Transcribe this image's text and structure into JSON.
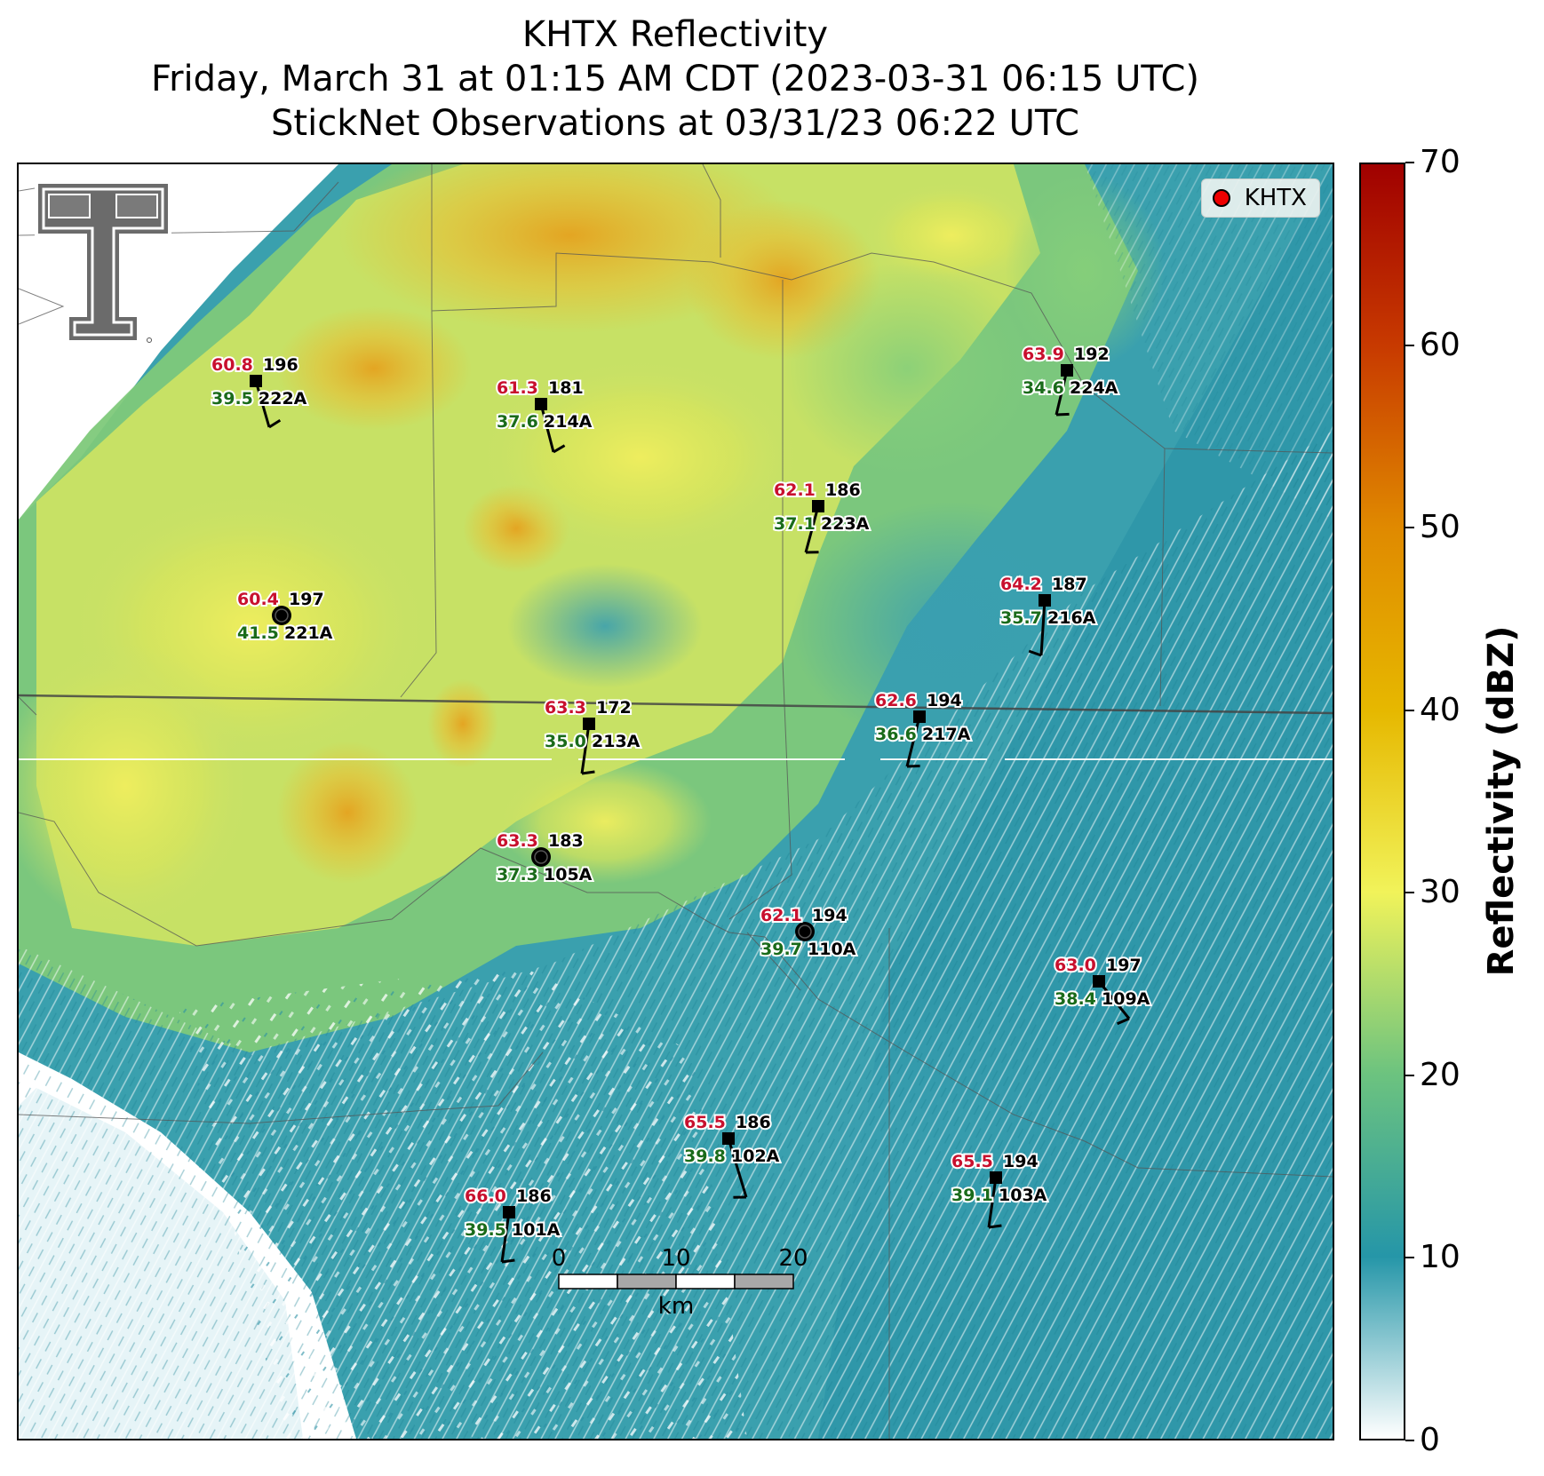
{
  "title": {
    "line1": "KHTX Reflectivity",
    "line2": "Friday, March 31 at 01:15 AM CDT (2023-03-31 06:15 UTC)",
    "line3": "StickNet Observations at 03/31/23 06:22 UTC"
  },
  "legend": {
    "label": "KHTX",
    "marker_color": "#e00000"
  },
  "colorbar": {
    "title": "Reflectivity (dBZ)",
    "min": 0,
    "max": 70,
    "ticks": [
      "0",
      "10",
      "20",
      "30",
      "40",
      "50",
      "60",
      "70"
    ],
    "colors": [
      "#ffffff",
      "#2596a8",
      "#6cc37f",
      "#f1f35a",
      "#e6b800",
      "#e08a00",
      "#c83a00",
      "#a00000"
    ]
  },
  "scale_bar": {
    "ticks": [
      "0",
      "10",
      "20"
    ],
    "unit": "km"
  },
  "logo": "texas-tech-double-t",
  "stations": [
    {
      "id": "222A",
      "temp": "60.8",
      "dew": "39.5",
      "dir": "196"
    },
    {
      "id": "214A",
      "temp": "61.3",
      "dew": "37.6",
      "dir": "181"
    },
    {
      "id": "224A",
      "temp": "63.9",
      "dew": "34.6",
      "dir": "192"
    },
    {
      "id": "223A",
      "temp": "62.1",
      "dew": "37.1",
      "dir": "186"
    },
    {
      "id": "221A",
      "temp": "60.4",
      "dew": "41.5",
      "dir": "197"
    },
    {
      "id": "216A",
      "temp": "64.2",
      "dew": "35.7",
      "dir": "187"
    },
    {
      "id": "213A",
      "temp": "63.3",
      "dew": "35.0",
      "dir": "172"
    },
    {
      "id": "217A",
      "temp": "62.6",
      "dew": "36.6",
      "dir": "194"
    },
    {
      "id": "105A",
      "temp": "63.3",
      "dew": "37.3",
      "dir": "183"
    },
    {
      "id": "110A",
      "temp": "62.1",
      "dew": "39.7",
      "dir": "194"
    },
    {
      "id": "109A",
      "temp": "63.0",
      "dew": "38.4",
      "dir": "197"
    },
    {
      "id": "102A",
      "temp": "65.5",
      "dew": "39.8",
      "dir": "186"
    },
    {
      "id": "103A",
      "temp": "65.5",
      "dew": "39.1",
      "dir": "194"
    },
    {
      "id": "101A",
      "temp": "66.0",
      "dew": "39.5",
      "dir": "186"
    }
  ]
}
